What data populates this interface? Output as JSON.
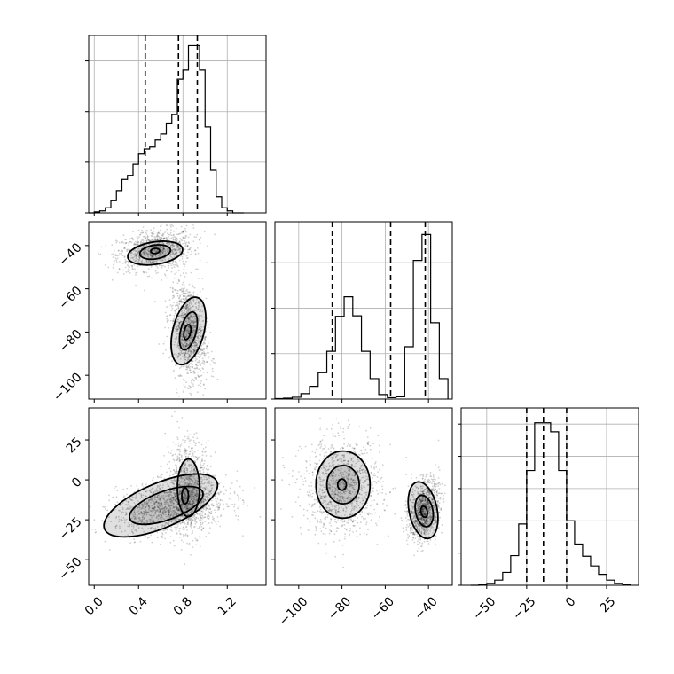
{
  "chart_data": {
    "type": "corner",
    "parameters": [
      {
        "range": [
          -0.05,
          1.55
        ],
        "ticks": [
          0.0,
          0.4,
          0.8,
          1.2
        ],
        "tick_labels": [
          "0.0",
          "0.4",
          "0.8",
          "1.2"
        ],
        "quantiles": [
          0.46,
          0.76,
          0.93
        ]
      },
      {
        "range": [
          -111,
          -29
        ],
        "ticks": [
          -100,
          -80,
          -60,
          -40
        ],
        "tick_labels": [
          "−100",
          "−80",
          "−60",
          "−40"
        ],
        "quantiles": [
          -84.5,
          -57.5,
          -41.5
        ]
      },
      {
        "range": [
          -66,
          45
        ],
        "ticks": [
          -50,
          -25,
          0,
          25
        ],
        "tick_labels": [
          "−50",
          "−25",
          "0",
          "25"
        ],
        "quantiles": [
          -25,
          -14.5,
          0
        ]
      }
    ],
    "histograms": [
      {
        "bins": [
          -0.05,
          0.0,
          0.05,
          0.1,
          0.15,
          0.2,
          0.25,
          0.3,
          0.35,
          0.4,
          0.45,
          0.5,
          0.55,
          0.6,
          0.65,
          0.7,
          0.75,
          0.8,
          0.85,
          0.9,
          0.95,
          1.0,
          1.05,
          1.1,
          1.15,
          1.2,
          1.25,
          1.3,
          1.35
        ],
        "counts": [
          0,
          1,
          2,
          5,
          12,
          22,
          33,
          37,
          48,
          58,
          63,
          65,
          72,
          78,
          88,
          97,
          132,
          141,
          165,
          165,
          141,
          85,
          42,
          16,
          5,
          2,
          0,
          0
        ],
        "ylim": [
          0,
          175
        ],
        "yticks": [
          0,
          50,
          100,
          150
        ]
      },
      {
        "bins": [
          -111,
          -107,
          -103,
          -99,
          -95,
          -91,
          -87,
          -83,
          -79,
          -75,
          -71,
          -67,
          -63,
          -59,
          -55,
          -51,
          -47,
          -43,
          -39,
          -35,
          -31
        ],
        "counts": [
          1,
          2,
          4,
          12,
          28,
          58,
          105,
          182,
          225,
          183,
          105,
          45,
          10,
          3,
          5,
          115,
          305,
          362,
          168,
          45
        ],
        "ylim": [
          0,
          390
        ],
        "yticks": [
          0,
          100,
          200,
          300
        ]
      },
      {
        "bins": [
          -60,
          -55,
          -50,
          -45,
          -40,
          -35,
          -30,
          -25,
          -20,
          -15,
          -10,
          -5,
          0,
          5,
          10,
          15,
          20,
          25,
          30,
          35,
          40
        ],
        "counts": [
          0,
          1,
          3,
          8,
          20,
          46,
          95,
          178,
          252,
          252,
          238,
          178,
          100,
          64,
          45,
          30,
          17,
          8,
          3,
          1
        ],
        "ylim": [
          0,
          275
        ],
        "yticks": [
          0,
          50,
          100,
          150,
          200,
          250
        ]
      }
    ],
    "pair_panels": [
      {
        "x_param": 0,
        "y_param": 1,
        "clusters": [
          {
            "center": [
              0.55,
              -42
            ],
            "spread": [
              0.17,
              4.5
            ],
            "tilt": 0.25,
            "weight": 0.45
          },
          {
            "center": [
              0.85,
              -80
            ],
            "spread": [
              0.08,
              11
            ],
            "tilt": -0.3,
            "weight": 0.55
          }
        ],
        "contours": [
          {
            "center": [
              0.55,
              -42.5
            ],
            "radii": [
              0.04,
              1.2
            ],
            "angle": 0.1
          },
          {
            "center": [
              0.55,
              -43
            ],
            "radii": [
              0.14,
              3.2
            ],
            "angle": 0.15
          },
          {
            "center": [
              0.55,
              -43.5
            ],
            "radii": [
              0.25,
              5.2
            ],
            "angle": 0.15
          },
          {
            "center": [
              0.84,
              -80
            ],
            "radii": [
              0.03,
              3.5
            ],
            "angle": -0.2
          },
          {
            "center": [
              0.85,
              -79.5
            ],
            "radii": [
              0.07,
              9
            ],
            "angle": -0.25
          },
          {
            "center": [
              0.85,
              -79.5
            ],
            "radii": [
              0.14,
              16
            ],
            "angle": -0.25
          }
        ]
      },
      {
        "x_param": 0,
        "y_param": 2,
        "clusters": [
          {
            "center": [
              0.7,
              -17
            ],
            "spread": [
              0.25,
              8
            ],
            "tilt": 0.3,
            "weight": 0.65
          },
          {
            "center": [
              0.85,
              -3
            ],
            "spread": [
              0.1,
              15
            ],
            "tilt": 0.0,
            "weight": 0.35
          }
        ],
        "contours": [
          {
            "center": [
              0.82,
              -10
            ],
            "radii": [
              0.03,
              5
            ],
            "angle": 0.0
          },
          {
            "center": [
              0.65,
              -16
            ],
            "radii": [
              0.35,
              9
            ],
            "angle": 0.35
          },
          {
            "center": [
              0.6,
              -16
            ],
            "radii": [
              0.55,
              14
            ],
            "angle": 0.4
          },
          {
            "center": [
              0.85,
              -5
            ],
            "radii": [
              0.1,
              18
            ],
            "angle": 0.0
          }
        ]
      },
      {
        "x_param": 1,
        "y_param": 2,
        "clusters": [
          {
            "center": [
              -80,
              -4
            ],
            "spread": [
              9,
              15
            ],
            "tilt": 0.0,
            "weight": 0.5
          },
          {
            "center": [
              -42,
              -19
            ],
            "spread": [
              3.5,
              9
            ],
            "tilt": 0.3,
            "weight": 0.5
          }
        ],
        "contours": [
          {
            "center": [
              -80,
              -3
            ],
            "radii": [
              2,
              3.5
            ],
            "angle": 0.0
          },
          {
            "center": [
              -79.5,
              -3
            ],
            "radii": [
              7.5,
              12
            ],
            "angle": 0.0
          },
          {
            "center": [
              -79.5,
              -3
            ],
            "radii": [
              12.5,
              21
            ],
            "angle": 0.0
          },
          {
            "center": [
              -42,
              -20
            ],
            "radii": [
              1.5,
              3.5
            ],
            "angle": 0.2
          },
          {
            "center": [
              -42,
              -19.5
            ],
            "radii": [
              4,
              10
            ],
            "angle": 0.2
          },
          {
            "center": [
              -42.5,
              -19
            ],
            "radii": [
              6.5,
              18
            ],
            "angle": 0.2
          }
        ]
      }
    ]
  }
}
